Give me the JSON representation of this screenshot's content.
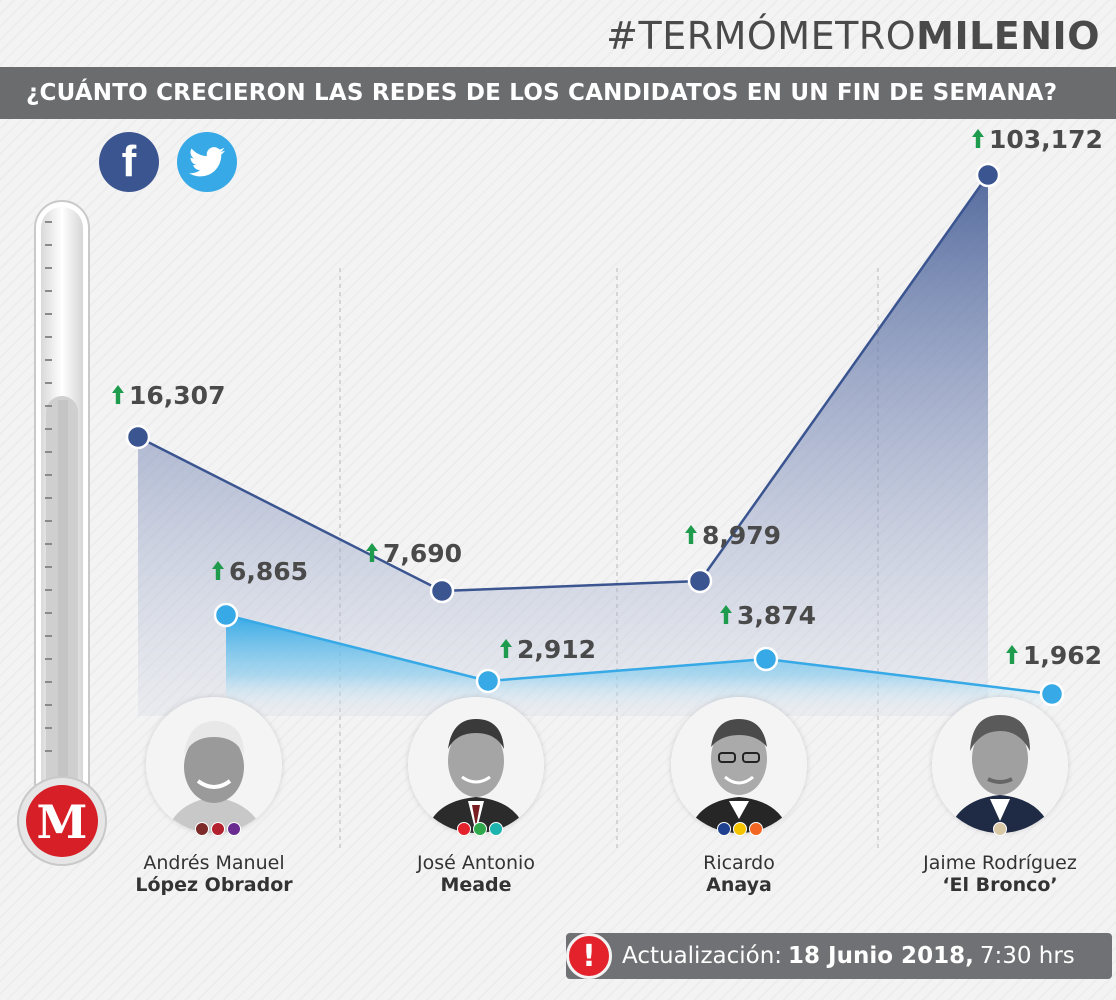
{
  "brand": {
    "hashtag": "#TERMÓMETRO",
    "name": "MILENIO"
  },
  "header": {
    "title": "¿CUÁNTO CRECIERON LAS REDES DE LOS CANDIDATOS EN UN FIN DE SEMANA?"
  },
  "social": {
    "facebook_glyph": "f",
    "facebook_color": "#3b5590",
    "twitter_color": "#36a9e6"
  },
  "logo": {
    "letter": "M",
    "color": "#d71f27"
  },
  "colors": {
    "facebook_series": "#3b5590",
    "twitter_series": "#36a9e6",
    "increase_arrow": "#1e9b4d"
  },
  "candidates": [
    {
      "first": "Andrés Manuel",
      "last": "López Obrador",
      "parties": [
        "#7c2a2a",
        "#b3202e",
        "#6b2c91"
      ]
    },
    {
      "first": "José Antonio",
      "last": "Meade",
      "parties": [
        "#e3222b",
        "#2ea84b",
        "#1db3ae"
      ]
    },
    {
      "first": "Ricardo",
      "last": "Anaya",
      "parties": [
        "#1f3f8f",
        "#f5c400",
        "#f26522"
      ]
    },
    {
      "first": "Jaime Rodríguez",
      "last": "‘El Bronco’",
      "parties": [
        "#d8c8a6"
      ]
    }
  ],
  "chart_data": {
    "type": "area",
    "categories": [
      "Andrés Manuel López Obrador",
      "José Antonio Meade",
      "Ricardo Anaya",
      "Jaime Rodríguez ‘El Bronco’"
    ],
    "series": [
      {
        "values": [
          16307,
          7690,
          8979,
          103172
        ],
        "labels": [
          "16,307",
          "7,690",
          "8,979",
          "103,172"
        ]
      },
      {
        "values": [
          6865,
          2912,
          3874,
          1962
        ],
        "labels": [
          "6,865",
          "2,912",
          "3,874",
          "1,962"
        ]
      }
    ],
    "title": "¿CUÁNTO CRECIERON LAS REDES DE LOS CANDIDATOS EN UN FIN DE SEMANA?",
    "grid": false
  },
  "update": {
    "label": "Actualización:",
    "date": "18 Junio 2018,",
    "time": "7:30 hrs",
    "icon": "!"
  }
}
